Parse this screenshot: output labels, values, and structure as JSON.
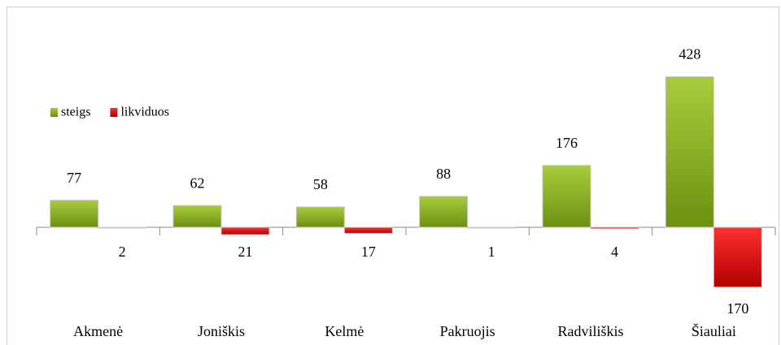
{
  "chart_data": {
    "type": "bar",
    "categories": [
      "Akmenė",
      "Joniškis",
      "Kelmė",
      "Pakruojis",
      "Radviliškis",
      "Šiauliai"
    ],
    "series": [
      {
        "name": "steigs",
        "color": "#80a818",
        "values": [
          77,
          62,
          58,
          88,
          176,
          428
        ]
      },
      {
        "name": "likviduos",
        "color": "#e00000",
        "values": [
          -2,
          -21,
          -17,
          -1,
          -4,
          -170
        ],
        "value_labels": [
          "2",
          "21",
          "17",
          "1",
          "4",
          "170"
        ]
      }
    ],
    "ylim": [
      -300,
      600
    ],
    "legend": "top-left"
  }
}
